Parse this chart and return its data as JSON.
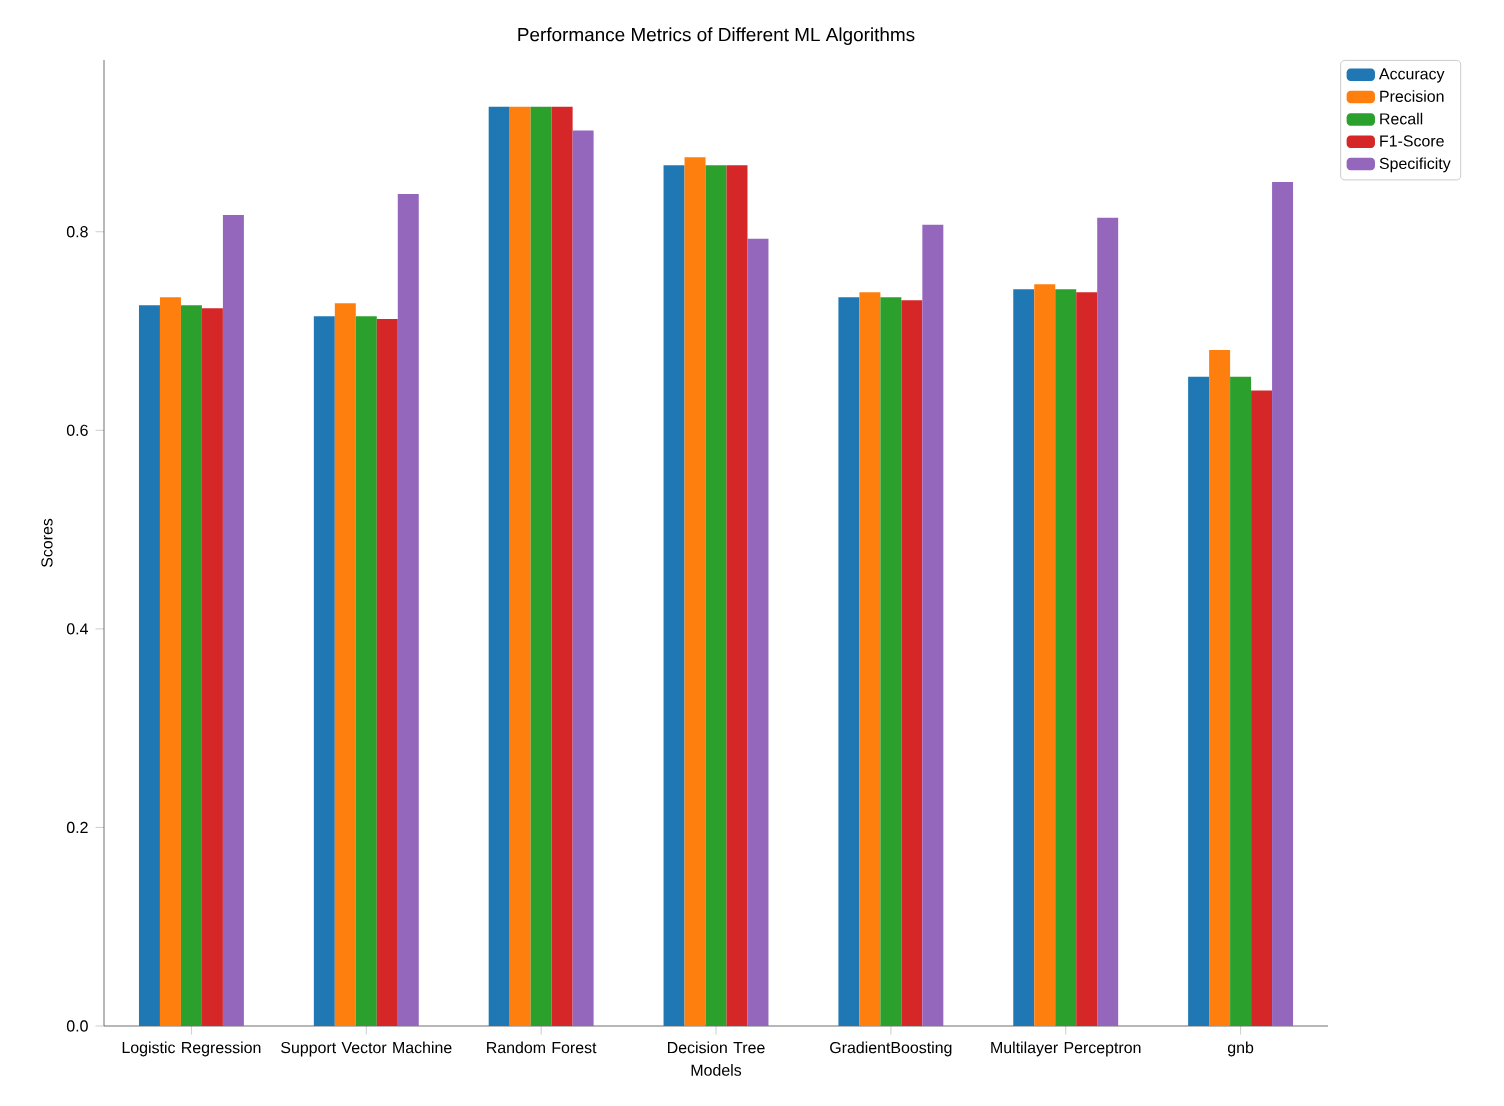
{
  "chart_data": {
    "type": "bar",
    "title": "Performance Metrics of Different ML Algorithms",
    "xlabel": "Models",
    "ylabel": "Scores",
    "categories": [
      "Logistic Regression",
      "Support Vector Machine",
      "Random Forest",
      "Decision Tree",
      "GradientBoosting",
      "Multilayer Perceptron",
      "gnb"
    ],
    "series": [
      {
        "name": "Accuracy",
        "color": "#1f77b4",
        "values": [
          0.726,
          0.715,
          0.926,
          0.867,
          0.734,
          0.742,
          0.654
        ]
      },
      {
        "name": "Precision",
        "color": "#ff7f0e",
        "values": [
          0.734,
          0.728,
          0.926,
          0.875,
          0.739,
          0.747,
          0.681
        ]
      },
      {
        "name": "Recall",
        "color": "#2ca02c",
        "values": [
          0.726,
          0.715,
          0.926,
          0.867,
          0.734,
          0.742,
          0.654
        ]
      },
      {
        "name": "F1-Score",
        "color": "#d62728",
        "values": [
          0.723,
          0.712,
          0.926,
          0.867,
          0.731,
          0.739,
          0.64
        ]
      },
      {
        "name": "Specificity",
        "color": "#9467bd",
        "values": [
          0.817,
          0.838,
          0.902,
          0.793,
          0.807,
          0.814,
          0.85
        ]
      }
    ],
    "ylim": [
      0,
      0.973
    ],
    "yticks": [
      {
        "value": 0,
        "label": "0.0"
      },
      {
        "value": 0.2,
        "label": "0.2"
      },
      {
        "value": 0.4,
        "label": "0.4"
      },
      {
        "value": 0.6,
        "label": "0.6"
      },
      {
        "value": 0.8,
        "label": "0.8"
      }
    ],
    "legend": "top right"
  }
}
